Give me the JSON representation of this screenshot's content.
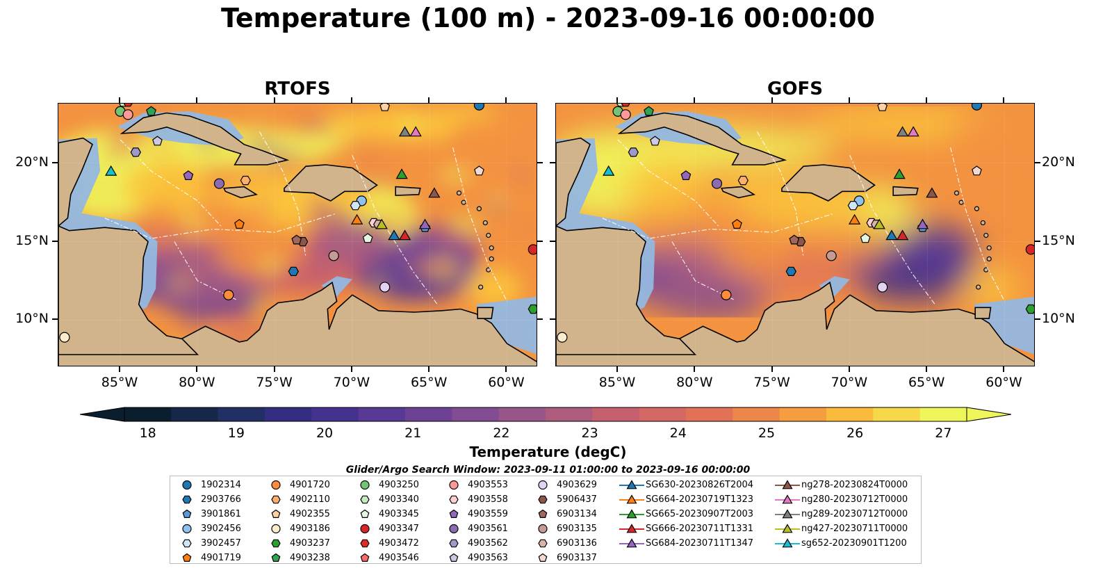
{
  "title": "Temperature (100 m) - 2023-09-16 00:00:00",
  "panels": [
    {
      "title": "RTOFS"
    },
    {
      "title": "GOFS"
    }
  ],
  "axes": {
    "lon_labels": [
      "85°W",
      "80°W",
      "75°W",
      "70°W",
      "65°W",
      "60°W"
    ],
    "lon_values": [
      -85,
      -80,
      -75,
      -70,
      -65,
      -60
    ],
    "lat_labels": [
      "20°N",
      "15°N",
      "10°N"
    ],
    "lat_values": [
      20,
      15,
      10
    ],
    "lon_range": [
      -89,
      -58
    ],
    "lat_range": [
      7,
      23.8
    ]
  },
  "colorbar": {
    "label": "Temperature (degC)",
    "ticks": [
      "18",
      "19",
      "20",
      "21",
      "22",
      "23",
      "24",
      "25",
      "26",
      "27"
    ],
    "range": [
      18,
      27
    ],
    "extend": "both",
    "colors": [
      "#0b1e2e",
      "#1d2f5c",
      "#3a2e8c",
      "#5a3a95",
      "#7d4a93",
      "#a35a85",
      "#c9616c",
      "#e0705a",
      "#f39240",
      "#fbc43c",
      "#eef55a"
    ]
  },
  "colors": {
    "land": "#d2b48c",
    "shelf": "#94b7e0",
    "deep_ocean": "#0d2233"
  },
  "search_window": "Glider/Argo Search Window: 2023-09-11 01:00:00 to 2023-09-16 00:00:00",
  "legend": [
    {
      "label": "1902314",
      "marker": "circle",
      "color": "#1f77b4"
    },
    {
      "label": "2903766",
      "marker": "hexagon",
      "color": "#1f77b4"
    },
    {
      "label": "3901861",
      "marker": "pentagon",
      "color": "#5a9bd5"
    },
    {
      "label": "3902456",
      "marker": "circle",
      "color": "#8fc1ee"
    },
    {
      "label": "3902457",
      "marker": "hexagon",
      "color": "#cfe5f8"
    },
    {
      "label": "4901719",
      "marker": "pentagon",
      "color": "#ff7f0e"
    },
    {
      "label": "4901720",
      "marker": "circle",
      "color": "#fd8d3c"
    },
    {
      "label": "4902110",
      "marker": "hexagon",
      "color": "#fdae6b"
    },
    {
      "label": "4902355",
      "marker": "pentagon",
      "color": "#fdd0a2"
    },
    {
      "label": "4903186",
      "marker": "circle",
      "color": "#feeccd"
    },
    {
      "label": "4903237",
      "marker": "hexagon",
      "color": "#2ca02c"
    },
    {
      "label": "4903238",
      "marker": "pentagon",
      "color": "#31a354"
    },
    {
      "label": "4903250",
      "marker": "circle",
      "color": "#74c476"
    },
    {
      "label": "4903340",
      "marker": "hexagon",
      "color": "#c7e9c0"
    },
    {
      "label": "4903345",
      "marker": "pentagon",
      "color": "#e5f5e0"
    },
    {
      "label": "4903347",
      "marker": "circle",
      "color": "#d62728"
    },
    {
      "label": "4903472",
      "marker": "hexagon",
      "color": "#de2d26"
    },
    {
      "label": "4903546",
      "marker": "pentagon",
      "color": "#fb6a6a"
    },
    {
      "label": "4903553",
      "marker": "circle",
      "color": "#fc9a9a"
    },
    {
      "label": "4903558",
      "marker": "hexagon",
      "color": "#fcd0d0"
    },
    {
      "label": "4903559",
      "marker": "pentagon",
      "color": "#9467bd"
    },
    {
      "label": "4903561",
      "marker": "circle",
      "color": "#8c6bb1"
    },
    {
      "label": "4903562",
      "marker": "hexagon",
      "color": "#9e9ac8"
    },
    {
      "label": "4903563",
      "marker": "pentagon",
      "color": "#cbc9e2"
    },
    {
      "label": "4903629",
      "marker": "circle",
      "color": "#e2d3f2"
    },
    {
      "label": "5906437",
      "marker": "hexagon",
      "color": "#8c564b"
    },
    {
      "label": "6903134",
      "marker": "pentagon",
      "color": "#a0675b"
    },
    {
      "label": "6903135",
      "marker": "circle",
      "color": "#c49c94"
    },
    {
      "label": "6903136",
      "marker": "hexagon",
      "color": "#d9b3a8"
    },
    {
      "label": "6903137",
      "marker": "pentagon",
      "color": "#f3d9d0"
    },
    {
      "label": "SG630-20230826T2004",
      "marker": "triangle",
      "color": "#1f77b4"
    },
    {
      "label": "SG664-20230719T1323",
      "marker": "triangle",
      "color": "#ff7f0e"
    },
    {
      "label": "SG665-20230907T2003",
      "marker": "triangle",
      "color": "#2ca02c"
    },
    {
      "label": "SG666-20230711T1331",
      "marker": "triangle",
      "color": "#d62728"
    },
    {
      "label": "SG684-20230711T1347",
      "marker": "triangle",
      "color": "#9467bd"
    },
    {
      "label": "ng278-20230824T0000",
      "marker": "triangle",
      "color": "#8c564b"
    },
    {
      "label": "ng280-20230712T0000",
      "marker": "triangle",
      "color": "#e377c2"
    },
    {
      "label": "ng289-20230712T0000",
      "marker": "triangle",
      "color": "#7f7f7f"
    },
    {
      "label": "ng427-20230711T0000",
      "marker": "triangle",
      "color": "#bcbd22"
    },
    {
      "label": "sg652-20230901T1200",
      "marker": "triangle",
      "color": "#17becf"
    }
  ],
  "platforms": [
    {
      "marker": "circle",
      "color": "#1f77b4",
      "lon": -61.8,
      "lat": 23.7
    },
    {
      "marker": "hexagon",
      "color": "#1f77b4",
      "lon": -73.8,
      "lat": 13.1
    },
    {
      "marker": "pentagon",
      "color": "#5a9bd5",
      "lon": -65.3,
      "lat": 15.9
    },
    {
      "marker": "circle",
      "color": "#8fc1ee",
      "lon": -69.4,
      "lat": 17.6
    },
    {
      "marker": "hexagon",
      "color": "#cfe5f8",
      "lon": -69.8,
      "lat": 17.3
    },
    {
      "marker": "pentagon",
      "color": "#ff7f0e",
      "lon": -77.3,
      "lat": 16.1
    },
    {
      "marker": "circle",
      "color": "#fd8d3c",
      "lon": -78.0,
      "lat": 11.6
    },
    {
      "marker": "hexagon",
      "color": "#fdae6b",
      "lon": -76.9,
      "lat": 18.9
    },
    {
      "marker": "pentagon",
      "color": "#fdd0a2",
      "lon": -67.9,
      "lat": 23.6
    },
    {
      "marker": "circle",
      "color": "#feeccd",
      "lon": -88.6,
      "lat": 8.9
    },
    {
      "marker": "hexagon",
      "color": "#2ca02c",
      "lon": -58.3,
      "lat": 10.7
    },
    {
      "marker": "pentagon",
      "color": "#31a354",
      "lon": -83.0,
      "lat": 23.3
    },
    {
      "marker": "circle",
      "color": "#74c476",
      "lon": -85.0,
      "lat": 23.3
    },
    {
      "marker": "hexagon",
      "color": "#c7e9c0",
      "lon": -84.8,
      "lat": 23.9
    },
    {
      "marker": "pentagon",
      "color": "#e5f5e0",
      "lon": -69.0,
      "lat": 15.2
    },
    {
      "marker": "circle",
      "color": "#d62728",
      "lon": -58.3,
      "lat": 14.5
    },
    {
      "marker": "hexagon",
      "color": "#de2d26",
      "lon": -84.5,
      "lat": 23.9
    },
    {
      "marker": "pentagon",
      "color": "#fb6a6a",
      "lon": -84.2,
      "lat": 24.1
    },
    {
      "marker": "circle",
      "color": "#fc9a9a",
      "lon": -84.5,
      "lat": 23.1
    },
    {
      "marker": "hexagon",
      "color": "#fcd0d0",
      "lon": -68.6,
      "lat": 16.2
    },
    {
      "marker": "pentagon",
      "color": "#9467bd",
      "lon": -80.6,
      "lat": 19.2
    },
    {
      "marker": "circle",
      "color": "#8c6bb1",
      "lon": -78.6,
      "lat": 18.7
    },
    {
      "marker": "hexagon",
      "color": "#9e9ac8",
      "lon": -84.0,
      "lat": 20.7
    },
    {
      "marker": "pentagon",
      "color": "#cbc9e2",
      "lon": -82.6,
      "lat": 21.4
    },
    {
      "marker": "circle",
      "color": "#e2d3f2",
      "lon": -67.9,
      "lat": 12.1
    },
    {
      "marker": "hexagon",
      "color": "#8c564b",
      "lon": -73.2,
      "lat": 15.0
    },
    {
      "marker": "pentagon",
      "color": "#a0675b",
      "lon": -73.6,
      "lat": 15.1
    },
    {
      "marker": "circle",
      "color": "#c49c94",
      "lon": -71.2,
      "lat": 14.1
    },
    {
      "marker": "hexagon",
      "color": "#d9b3a8",
      "lon": -68.3,
      "lat": 16.1
    },
    {
      "marker": "pentagon",
      "color": "#f3d9d0",
      "lon": -61.8,
      "lat": 19.5
    },
    {
      "marker": "triangle",
      "color": "#1f77b4",
      "lon": -67.3,
      "lat": 15.4
    },
    {
      "marker": "triangle",
      "color": "#ff7f0e",
      "lon": -69.7,
      "lat": 16.4
    },
    {
      "marker": "triangle",
      "color": "#2ca02c",
      "lon": -66.8,
      "lat": 19.3
    },
    {
      "marker": "triangle",
      "color": "#d62728",
      "lon": -66.6,
      "lat": 15.4
    },
    {
      "marker": "triangle",
      "color": "#9467bd",
      "lon": -65.3,
      "lat": 16.1
    },
    {
      "marker": "triangle",
      "color": "#8c564b",
      "lon": -64.7,
      "lat": 18.1
    },
    {
      "marker": "triangle",
      "color": "#e377c2",
      "lon": -65.9,
      "lat": 22.0
    },
    {
      "marker": "triangle",
      "color": "#7f7f7f",
      "lon": -66.6,
      "lat": 22.0
    },
    {
      "marker": "triangle",
      "color": "#bcbd22",
      "lon": -68.1,
      "lat": 16.1
    },
    {
      "marker": "triangle",
      "color": "#17becf",
      "lon": -85.6,
      "lat": 19.5
    }
  ]
}
